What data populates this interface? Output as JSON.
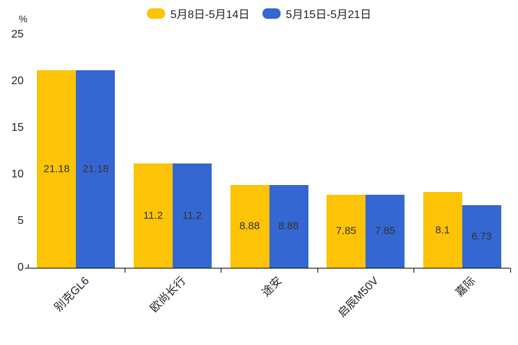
{
  "chart_data": {
    "type": "bar",
    "categories": [
      "别克GL6",
      "欧尚长行",
      "途安",
      "启辰M50V",
      "嘉际"
    ],
    "series": [
      {
        "name": "5月8日-5月14日",
        "color": "#FCC307",
        "values": [
          21.18,
          11.2,
          8.88,
          7.85,
          8.1
        ]
      },
      {
        "name": "5月15日-5月21日",
        "color": "#3467D1",
        "values": [
          21.18,
          11.2,
          8.88,
          7.85,
          6.73
        ]
      }
    ],
    "title": "",
    "xlabel": "",
    "ylabel": "%",
    "ylim": [
      0,
      25
    ],
    "yticks": [
      0,
      5,
      10,
      15,
      20,
      25
    ],
    "grid": false,
    "legend_position": "top-center",
    "value_label_position": "inside-center",
    "value_label_color": "#333333",
    "axis_color": "#000000",
    "text_color": "#222222"
  }
}
